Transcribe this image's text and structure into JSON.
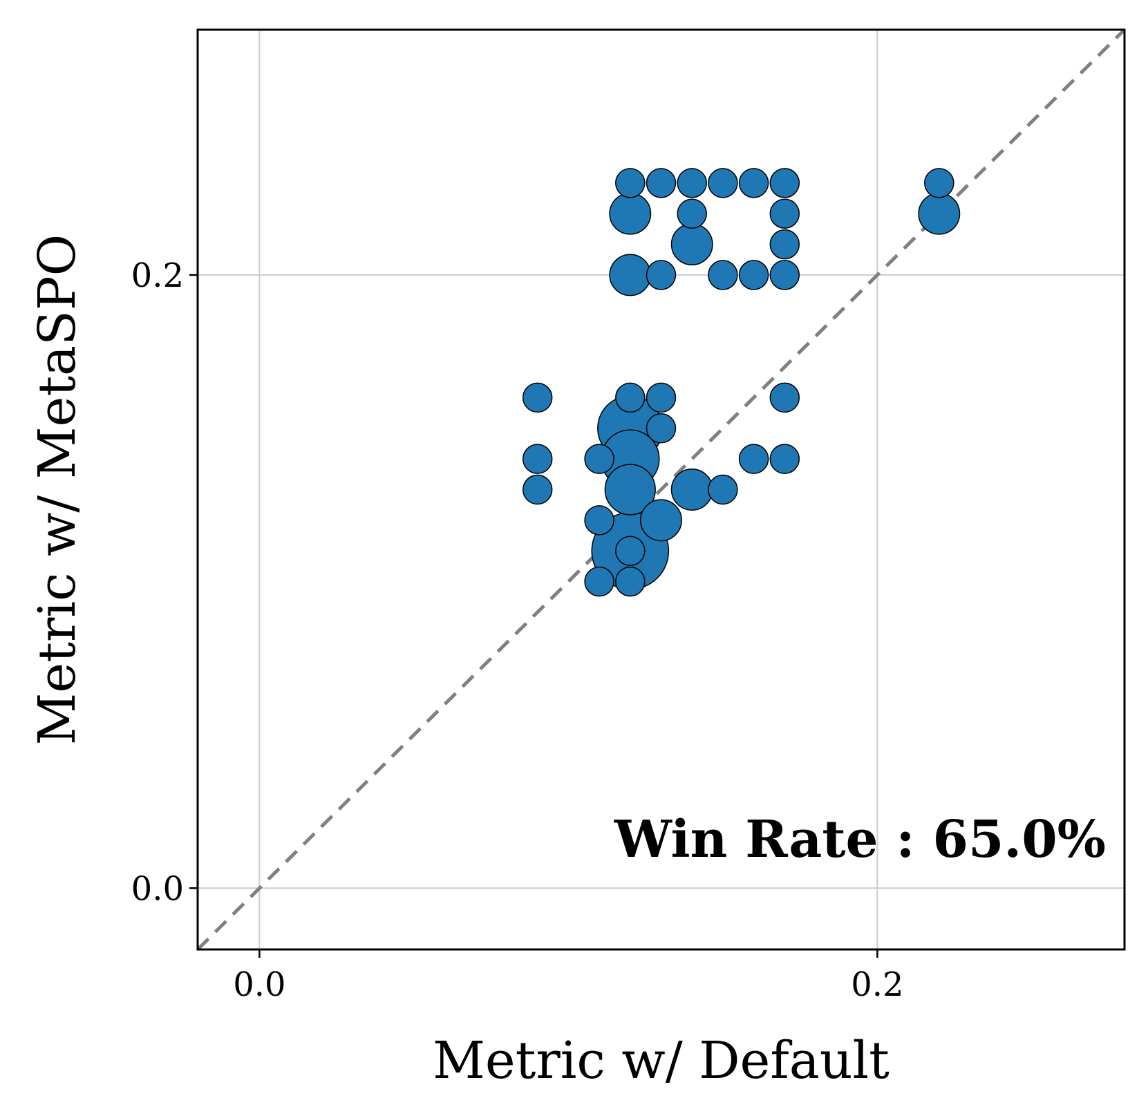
{
  "chart_data": {
    "type": "scatter",
    "xlabel": "Metric w/ Default",
    "ylabel": "Metric w/ MetaSPO",
    "xlim": [
      -0.02,
      0.28
    ],
    "ylim": [
      -0.02,
      0.28
    ],
    "xticks": [
      0.0,
      0.2
    ],
    "yticks": [
      0.0,
      0.2
    ],
    "xtick_labels": [
      "0.0",
      "0.2"
    ],
    "ytick_labels": [
      "0.0",
      "0.2"
    ],
    "grid": true,
    "reference_line": "y = x (dashed, gray)",
    "annotation": "Win Rate : 65.0%",
    "marker_color": "#1f77b4",
    "marker_edge_color": "#000000",
    "diagonal_color": "#808080",
    "grid_color": "#cccccc",
    "points": [
      {
        "x": 0.12,
        "y": 0.23,
        "count": 1
      },
      {
        "x": 0.13,
        "y": 0.23,
        "count": 1
      },
      {
        "x": 0.14,
        "y": 0.23,
        "count": 1
      },
      {
        "x": 0.15,
        "y": 0.23,
        "count": 1
      },
      {
        "x": 0.16,
        "y": 0.23,
        "count": 1
      },
      {
        "x": 0.17,
        "y": 0.23,
        "count": 1
      },
      {
        "x": 0.22,
        "y": 0.23,
        "count": 1
      },
      {
        "x": 0.12,
        "y": 0.22,
        "count": 2
      },
      {
        "x": 0.14,
        "y": 0.22,
        "count": 1
      },
      {
        "x": 0.17,
        "y": 0.22,
        "count": 1
      },
      {
        "x": 0.22,
        "y": 0.22,
        "count": 2
      },
      {
        "x": 0.14,
        "y": 0.21,
        "count": 2
      },
      {
        "x": 0.17,
        "y": 0.21,
        "count": 1
      },
      {
        "x": 0.12,
        "y": 0.2,
        "count": 2
      },
      {
        "x": 0.13,
        "y": 0.2,
        "count": 1
      },
      {
        "x": 0.15,
        "y": 0.2,
        "count": 1
      },
      {
        "x": 0.16,
        "y": 0.2,
        "count": 1
      },
      {
        "x": 0.17,
        "y": 0.2,
        "count": 1
      },
      {
        "x": 0.09,
        "y": 0.16,
        "count": 1
      },
      {
        "x": 0.12,
        "y": 0.16,
        "count": 1
      },
      {
        "x": 0.13,
        "y": 0.16,
        "count": 1
      },
      {
        "x": 0.17,
        "y": 0.16,
        "count": 1
      },
      {
        "x": 0.13,
        "y": 0.15,
        "count": 1
      },
      {
        "x": 0.09,
        "y": 0.14,
        "count": 1
      },
      {
        "x": 0.11,
        "y": 0.14,
        "count": 1
      },
      {
        "x": 0.16,
        "y": 0.14,
        "count": 1
      },
      {
        "x": 0.17,
        "y": 0.14,
        "count": 1
      },
      {
        "x": 0.09,
        "y": 0.13,
        "count": 1
      },
      {
        "x": 0.14,
        "y": 0.13,
        "count": 2
      },
      {
        "x": 0.15,
        "y": 0.13,
        "count": 1
      },
      {
        "x": 0.12,
        "y": 0.11,
        "count": 7
      },
      {
        "x": 0.11,
        "y": 0.12,
        "count": 1
      },
      {
        "x": 0.13,
        "y": 0.12,
        "count": 2
      },
      {
        "x": 0.12,
        "y": 0.13,
        "count": 3
      },
      {
        "x": 0.12,
        "y": 0.14,
        "count": 4
      },
      {
        "x": 0.12,
        "y": 0.15,
        "count": 5
      },
      {
        "x": 0.12,
        "y": 0.11,
        "count": 1
      },
      {
        "x": 0.11,
        "y": 0.1,
        "count": 1
      },
      {
        "x": 0.12,
        "y": 0.1,
        "count": 1
      }
    ]
  }
}
